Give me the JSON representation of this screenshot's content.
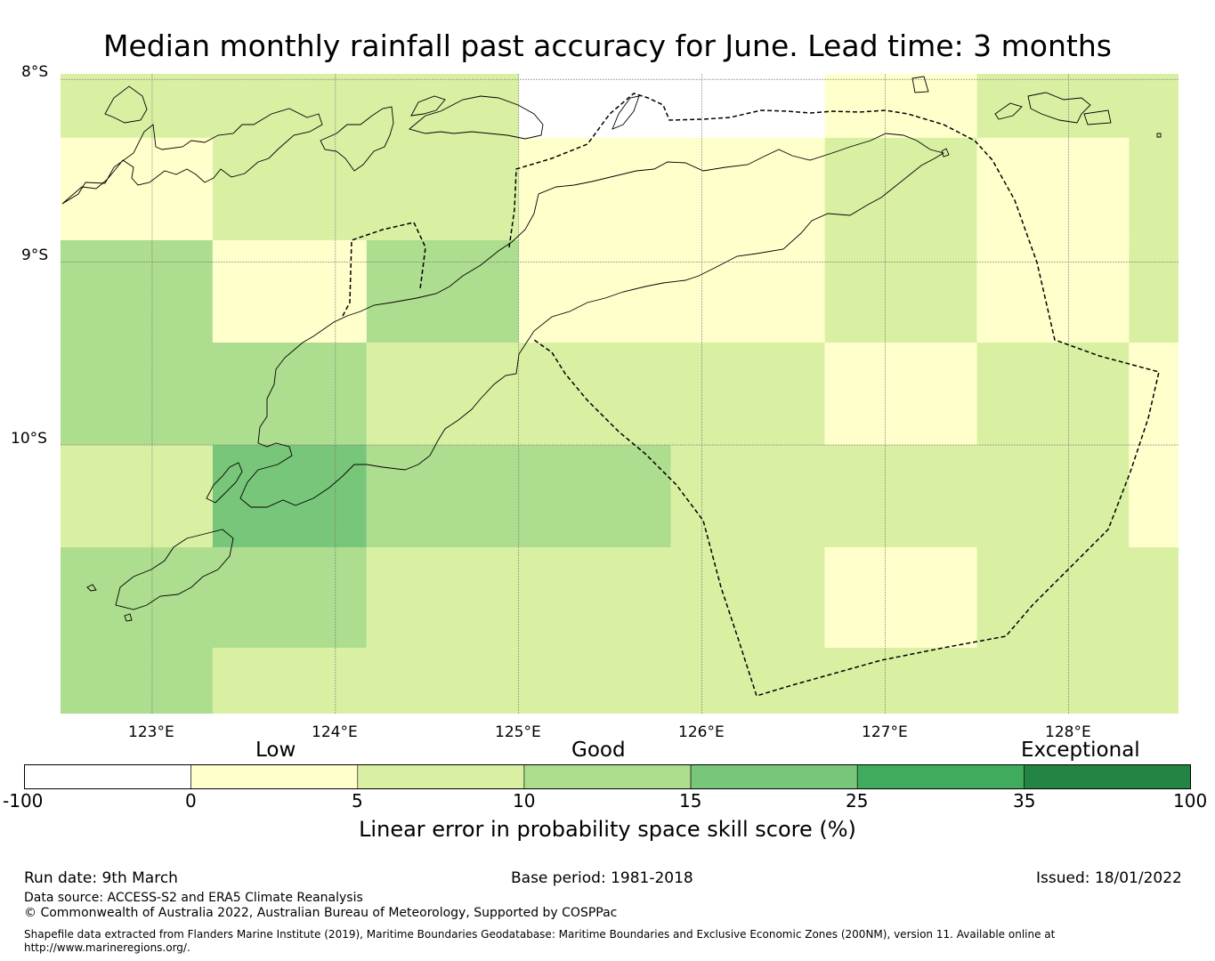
{
  "title": "Median monthly rainfall past accuracy for June. Lead time: 3 months",
  "map": {
    "lat_labels": [
      "8°S",
      "9°S",
      "10°S"
    ],
    "lon_labels": [
      "123°E",
      "124°E",
      "125°E",
      "126°E",
      "127°E",
      "128°E"
    ],
    "grid_lons": [
      123,
      124,
      125,
      126,
      127,
      128
    ],
    "grid_lats": [
      -8,
      -9,
      -10
    ],
    "extent": {
      "lon_min": 122.5,
      "lon_max": 128.6,
      "lat_max": -7.97,
      "lat_min": -11.47
    },
    "cells": [
      {
        "lon0": 122.5,
        "lon1": 125.0,
        "lat0": -7.97,
        "lat1": -8.32,
        "category": "5-10"
      },
      {
        "lon0": 125.0,
        "lon1": 126.67,
        "lat0": -7.97,
        "lat1": -8.32,
        "category": "-100-0"
      },
      {
        "lon0": 126.67,
        "lon1": 127.5,
        "lat0": -7.97,
        "lat1": -8.32,
        "category": "0-5"
      },
      {
        "lon0": 127.5,
        "lon1": 128.6,
        "lat0": -7.97,
        "lat1": -8.32,
        "category": "5-10"
      },
      {
        "lon0": 122.5,
        "lon1": 123.33,
        "lat0": -8.32,
        "lat1": -8.88,
        "category": "0-5"
      },
      {
        "lon0": 123.33,
        "lon1": 125.0,
        "lat0": -8.32,
        "lat1": -8.88,
        "category": "5-10"
      },
      {
        "lon0": 125.0,
        "lon1": 126.67,
        "lat0": -8.32,
        "lat1": -8.88,
        "category": "0-5"
      },
      {
        "lon0": 126.67,
        "lon1": 127.5,
        "lat0": -8.32,
        "lat1": -8.88,
        "category": "5-10"
      },
      {
        "lon0": 127.5,
        "lon1": 128.33,
        "lat0": -8.32,
        "lat1": -8.88,
        "category": "0-5"
      },
      {
        "lon0": 128.33,
        "lon1": 128.6,
        "lat0": -8.32,
        "lat1": -8.88,
        "category": "5-10"
      },
      {
        "lon0": 122.5,
        "lon1": 123.33,
        "lat0": -8.88,
        "lat1": -9.44,
        "category": "10-15"
      },
      {
        "lon0": 123.33,
        "lon1": 124.17,
        "lat0": -8.88,
        "lat1": -9.44,
        "category": "0-5"
      },
      {
        "lon0": 124.17,
        "lon1": 125.0,
        "lat0": -8.88,
        "lat1": -9.44,
        "category": "10-15"
      },
      {
        "lon0": 125.0,
        "lon1": 126.67,
        "lat0": -8.88,
        "lat1": -9.44,
        "category": "0-5"
      },
      {
        "lon0": 126.67,
        "lon1": 127.5,
        "lat0": -8.88,
        "lat1": -9.44,
        "category": "5-10"
      },
      {
        "lon0": 127.5,
        "lon1": 128.33,
        "lat0": -8.88,
        "lat1": -9.44,
        "category": "0-5"
      },
      {
        "lon0": 128.33,
        "lon1": 128.6,
        "lat0": -8.88,
        "lat1": -9.44,
        "category": "5-10"
      },
      {
        "lon0": 122.5,
        "lon1": 124.17,
        "lat0": -9.44,
        "lat1": -10.0,
        "category": "10-15"
      },
      {
        "lon0": 124.17,
        "lon1": 126.67,
        "lat0": -9.44,
        "lat1": -10.0,
        "category": "5-10"
      },
      {
        "lon0": 126.67,
        "lon1": 127.5,
        "lat0": -9.44,
        "lat1": -10.0,
        "category": "0-5"
      },
      {
        "lon0": 127.5,
        "lon1": 128.33,
        "lat0": -9.44,
        "lat1": -10.0,
        "category": "5-10"
      },
      {
        "lon0": 128.33,
        "lon1": 128.6,
        "lat0": -9.44,
        "lat1": -10.0,
        "category": "0-5"
      },
      {
        "lon0": 122.5,
        "lon1": 123.33,
        "lat0": -10.0,
        "lat1": -10.56,
        "category": "5-10"
      },
      {
        "lon0": 123.33,
        "lon1": 124.17,
        "lat0": -10.0,
        "lat1": -10.56,
        "category": "15-25"
      },
      {
        "lon0": 124.17,
        "lon1": 125.83,
        "lat0": -10.0,
        "lat1": -10.56,
        "category": "10-15"
      },
      {
        "lon0": 125.83,
        "lon1": 128.33,
        "lat0": -10.0,
        "lat1": -10.56,
        "category": "5-10"
      },
      {
        "lon0": 128.33,
        "lon1": 128.6,
        "lat0": -10.0,
        "lat1": -10.56,
        "category": "0-5"
      },
      {
        "lon0": 122.5,
        "lon1": 124.17,
        "lat0": -10.56,
        "lat1": -11.11,
        "category": "10-15"
      },
      {
        "lon0": 124.17,
        "lon1": 126.67,
        "lat0": -10.56,
        "lat1": -11.11,
        "category": "5-10"
      },
      {
        "lon0": 126.67,
        "lon1": 127.5,
        "lat0": -10.56,
        "lat1": -11.11,
        "category": "0-5"
      },
      {
        "lon0": 127.5,
        "lon1": 128.6,
        "lat0": -10.56,
        "lat1": -11.11,
        "category": "5-10"
      },
      {
        "lon0": 122.5,
        "lon1": 123.33,
        "lat0": -11.11,
        "lat1": -11.47,
        "category": "10-15"
      },
      {
        "lon0": 123.33,
        "lon1": 128.6,
        "lat0": -11.11,
        "lat1": -11.47,
        "category": "5-10"
      }
    ]
  },
  "colorbar": {
    "category_labels": [
      "Low",
      "Good",
      "Exceptional"
    ],
    "ticks": [
      "-100",
      "0",
      "5",
      "10",
      "15",
      "25",
      "35",
      "100"
    ],
    "bins": [
      {
        "range": "-100-0",
        "color": "#ffffff"
      },
      {
        "range": "0-5",
        "color": "#ffffcc"
      },
      {
        "range": "5-10",
        "color": "#d9f0a3"
      },
      {
        "range": "10-15",
        "color": "#addd8e"
      },
      {
        "range": "15-25",
        "color": "#78c679"
      },
      {
        "range": "25-35",
        "color": "#41ab5d"
      },
      {
        "range": "35-100",
        "color": "#238443"
      }
    ],
    "label": "Linear error in probability space skill score (%)"
  },
  "footer": {
    "run_date": "Run date: 9th March",
    "base_period": "Base period: 1981-2018",
    "issued": "Issued: 18/01/2022",
    "data_source": "Data source: ACCESS-S2 and ERA5 Climate Reanalysis",
    "copyright": "© Commonwealth of Australia 2022, Australian Bureau of Meteorology, Supported by COSPPac",
    "shapefile_line1": "Shapefile data extracted from Flanders Marine Institute (2019), Maritime Boundaries Geodatabase: Maritime Boundaries and Exclusive Economic Zones (200NM), version 11. Available online at",
    "shapefile_line2": "http://www.marineregions.org/."
  }
}
